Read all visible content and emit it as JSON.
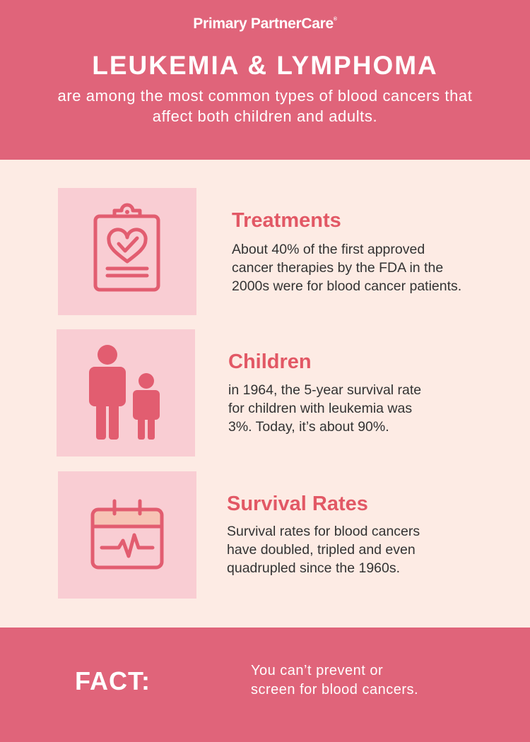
{
  "header": {
    "brand": "Primary PartnerCare",
    "brand_mark": "®",
    "headline": "LEUKEMIA & LYMPHOMA",
    "subline": "are among the most common types of blood cancers that affect both children and adults."
  },
  "items": [
    {
      "icon": "clipboard-heart-icon",
      "title": "Treatments",
      "lines": [
        "About 40% of the first approved",
        "cancer therapies by the FDA in the",
        "2000s were for blood cancer patients."
      ]
    },
    {
      "icon": "adult-child-icon",
      "title": "Children",
      "lines": [
        "in 1964, the 5-year survival rate",
        "for children with leukemia was",
        "3%. Today, it’s about 90%."
      ]
    },
    {
      "icon": "calendar-heartbeat-icon",
      "title": "Survival Rates",
      "lines": [
        "Survival rates for blood cancers",
        "have doubled, tripled and even",
        "quadrupled since the 1960s."
      ]
    }
  ],
  "footer": {
    "label": "FACT:",
    "lines": [
      "You can’t prevent or",
      "screen for blood cancers."
    ]
  },
  "colors": {
    "brand_pink": "#e0647a",
    "tile_pink": "#f9cdd3",
    "background": "#fdebe4",
    "accent_text": "#e25865",
    "icon_stroke": "#e25d70"
  }
}
